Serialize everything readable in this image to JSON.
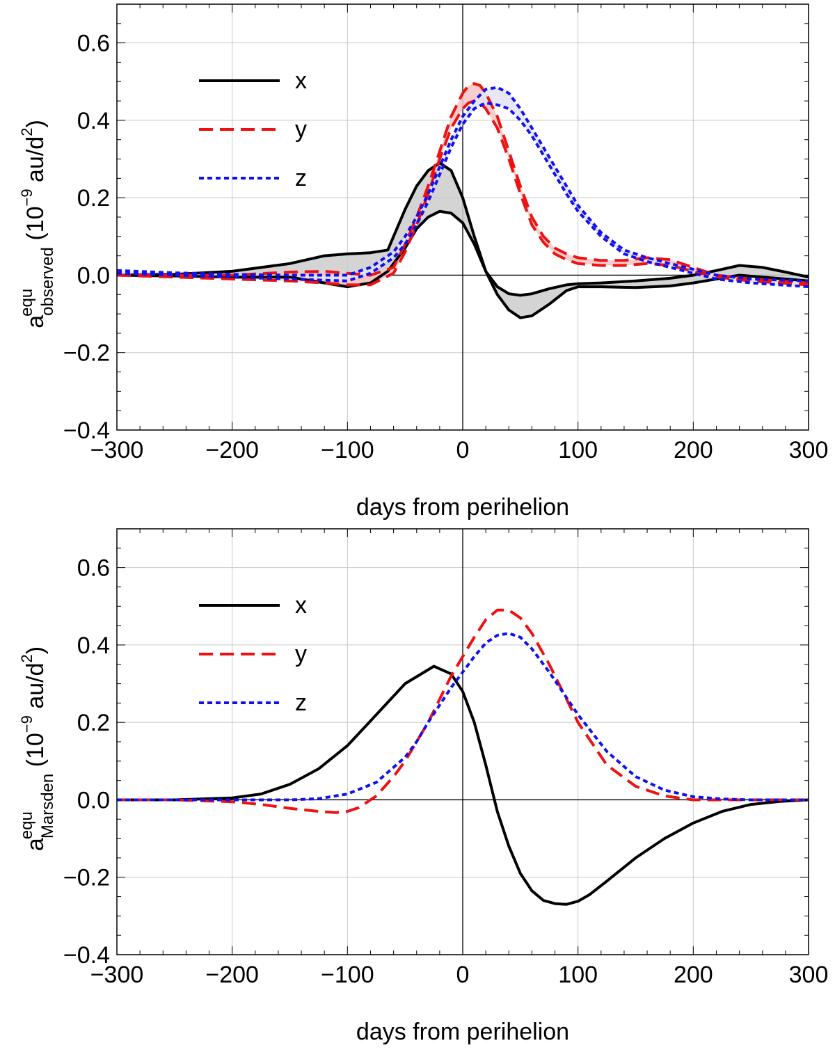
{
  "chart_data": [
    {
      "type": "line",
      "id": "top",
      "xlabel": "days from perihelion",
      "ylabel": {
        "base": "a",
        "sup": "equ",
        "sub": "observed",
        "unit_open": "(10",
        "unit_exp": "−9",
        "unit_mid": " au/d",
        "unit_sq": "2",
        "unit_close": ")"
      },
      "xlim": [
        -300,
        300
      ],
      "ylim": [
        -0.4,
        0.7
      ],
      "xticks": [
        -300,
        -200,
        -100,
        0,
        100,
        200,
        300
      ],
      "xtick_labels": [
        "−300",
        "−200",
        "−100",
        "0",
        "100",
        "200",
        "300"
      ],
      "yticks": [
        -0.4,
        -0.2,
        0.0,
        0.2,
        0.4,
        0.6
      ],
      "ytick_labels": [
        "−0.4",
        "−0.2",
        "0.0",
        "0.2",
        "0.4",
        "0.6"
      ],
      "legend": {
        "position": "top-left",
        "labels": [
          "x",
          "y",
          "z"
        ]
      },
      "bands": [
        {
          "name": "x",
          "color": "#000000",
          "fill": "#cccccc",
          "x": [
            -300,
            -250,
            -200,
            -150,
            -120,
            -100,
            -80,
            -65,
            -50,
            -40,
            -30,
            -20,
            -10,
            0,
            10,
            20,
            30,
            40,
            50,
            60,
            75,
            90,
            100,
            120,
            150,
            180,
            200,
            220,
            240,
            260,
            280,
            300
          ],
          "upper": [
            0.0,
            0.002,
            0.01,
            0.03,
            0.05,
            0.055,
            0.058,
            0.065,
            0.17,
            0.23,
            0.27,
            0.29,
            0.27,
            0.2,
            0.1,
            0.01,
            -0.03,
            -0.048,
            -0.052,
            -0.048,
            -0.035,
            -0.025,
            -0.022,
            -0.02,
            -0.015,
            -0.008,
            0.0,
            0.012,
            0.025,
            0.02,
            0.008,
            -0.005
          ],
          "lower": [
            0.0,
            -0.002,
            -0.005,
            -0.005,
            -0.02,
            -0.03,
            -0.02,
            0.01,
            0.07,
            0.12,
            0.15,
            0.165,
            0.16,
            0.135,
            0.08,
            0.01,
            -0.05,
            -0.09,
            -0.11,
            -0.105,
            -0.075,
            -0.04,
            -0.03,
            -0.03,
            -0.032,
            -0.028,
            -0.02,
            -0.01,
            0.0,
            -0.005,
            -0.01,
            -0.015
          ]
        },
        {
          "name": "y",
          "color": "#ee1111",
          "fill": "#f7c4c4",
          "x": [
            -300,
            -250,
            -200,
            -150,
            -120,
            -100,
            -80,
            -60,
            -50,
            -40,
            -30,
            -20,
            -10,
            0,
            5,
            10,
            15,
            20,
            30,
            40,
            50,
            60,
            70,
            80,
            90,
            100,
            120,
            140,
            160,
            180,
            200,
            220,
            250,
            300
          ],
          "upper": [
            0.0,
            0.0,
            0.0,
            0.008,
            0.01,
            0.005,
            0.0,
            0.02,
            0.08,
            0.15,
            0.23,
            0.32,
            0.41,
            0.47,
            0.49,
            0.495,
            0.49,
            0.47,
            0.41,
            0.32,
            0.23,
            0.15,
            0.1,
            0.07,
            0.055,
            0.045,
            0.038,
            0.038,
            0.045,
            0.04,
            0.02,
            0.0,
            -0.01,
            -0.02
          ],
          "lower": [
            0.0,
            -0.005,
            -0.01,
            -0.015,
            -0.02,
            -0.025,
            -0.025,
            0.005,
            0.06,
            0.13,
            0.21,
            0.3,
            0.38,
            0.43,
            0.445,
            0.45,
            0.445,
            0.43,
            0.38,
            0.3,
            0.21,
            0.13,
            0.085,
            0.055,
            0.04,
            0.03,
            0.025,
            0.025,
            0.03,
            0.025,
            0.01,
            -0.005,
            -0.015,
            -0.025
          ]
        },
        {
          "name": "z",
          "color": "#1111ee",
          "fill": "#e4e4f2",
          "x": [
            -300,
            -250,
            -200,
            -150,
            -100,
            -80,
            -60,
            -50,
            -40,
            -30,
            -20,
            -10,
            0,
            10,
            20,
            30,
            40,
            50,
            60,
            70,
            80,
            90,
            100,
            120,
            140,
            160,
            180,
            200,
            220,
            250,
            300
          ],
          "upper": [
            0.012,
            0.006,
            0.002,
            0.0,
            0.0,
            0.02,
            0.06,
            0.1,
            0.15,
            0.21,
            0.28,
            0.35,
            0.41,
            0.45,
            0.48,
            0.485,
            0.47,
            0.43,
            0.38,
            0.33,
            0.28,
            0.23,
            0.18,
            0.11,
            0.065,
            0.045,
            0.03,
            0.015,
            0.0,
            -0.01,
            -0.015
          ],
          "lower": [
            0.005,
            0.0,
            -0.005,
            -0.01,
            -0.015,
            0.005,
            0.045,
            0.08,
            0.13,
            0.19,
            0.26,
            0.33,
            0.39,
            0.43,
            0.445,
            0.44,
            0.43,
            0.4,
            0.36,
            0.31,
            0.26,
            0.21,
            0.165,
            0.1,
            0.055,
            0.035,
            0.02,
            0.005,
            -0.01,
            -0.02,
            -0.03
          ]
        }
      ]
    },
    {
      "type": "line",
      "id": "bottom",
      "xlabel": "days from perihelion",
      "ylabel": {
        "base": "a",
        "sup": "equ",
        "sub": "Marsden",
        "unit_open": "(10",
        "unit_exp": "−9",
        "unit_mid": " au/d",
        "unit_sq": "2",
        "unit_close": ")"
      },
      "xlim": [
        -300,
        300
      ],
      "ylim": [
        -0.4,
        0.7
      ],
      "xticks": [
        -300,
        -200,
        -100,
        0,
        100,
        200,
        300
      ],
      "xtick_labels": [
        "−300",
        "−200",
        "−100",
        "0",
        "100",
        "200",
        "300"
      ],
      "yticks": [
        -0.4,
        -0.2,
        0.0,
        0.2,
        0.4,
        0.6
      ],
      "ytick_labels": [
        "−0.4",
        "−0.2",
        "0.0",
        "0.2",
        "0.4",
        "0.6"
      ],
      "legend": {
        "position": "top-left",
        "labels": [
          "x",
          "y",
          "z"
        ]
      },
      "series": [
        {
          "name": "x",
          "color": "#000000",
          "dash": "solid",
          "x": [
            -300,
            -250,
            -200,
            -175,
            -150,
            -125,
            -100,
            -75,
            -50,
            -25,
            -10,
            0,
            10,
            20,
            30,
            40,
            50,
            60,
            70,
            80,
            90,
            100,
            110,
            125,
            150,
            175,
            200,
            225,
            250,
            275,
            300
          ],
          "y": [
            0.0,
            0.0,
            0.005,
            0.015,
            0.04,
            0.08,
            0.14,
            0.22,
            0.3,
            0.345,
            0.325,
            0.28,
            0.2,
            0.09,
            -0.03,
            -0.12,
            -0.19,
            -0.235,
            -0.26,
            -0.268,
            -0.27,
            -0.262,
            -0.245,
            -0.21,
            -0.15,
            -0.1,
            -0.06,
            -0.03,
            -0.012,
            -0.004,
            0.0
          ]
        },
        {
          "name": "y",
          "color": "#ee1111",
          "dash": "dashed",
          "x": [
            -300,
            -250,
            -200,
            -175,
            -150,
            -125,
            -110,
            -100,
            -90,
            -75,
            -60,
            -50,
            -40,
            -30,
            -20,
            -10,
            0,
            10,
            20,
            30,
            40,
            50,
            60,
            75,
            100,
            125,
            150,
            175,
            200,
            225,
            250,
            300
          ],
          "y": [
            0.0,
            0.0,
            -0.005,
            -0.012,
            -0.022,
            -0.03,
            -0.033,
            -0.03,
            -0.02,
            0.01,
            0.06,
            0.1,
            0.15,
            0.2,
            0.26,
            0.32,
            0.37,
            0.42,
            0.465,
            0.49,
            0.49,
            0.47,
            0.43,
            0.35,
            0.2,
            0.09,
            0.035,
            0.01,
            0.0,
            0.0,
            0.0,
            0.0
          ]
        },
        {
          "name": "z",
          "color": "#1111ee",
          "dash": "dotted",
          "x": [
            -300,
            -250,
            -200,
            -175,
            -150,
            -125,
            -100,
            -75,
            -50,
            -40,
            -30,
            -20,
            -10,
            0,
            10,
            20,
            30,
            40,
            50,
            60,
            75,
            100,
            125,
            150,
            175,
            200,
            225,
            250,
            275,
            300
          ],
          "y": [
            0.0,
            0.0,
            0.0,
            0.0,
            0.0,
            0.003,
            0.015,
            0.045,
            0.11,
            0.15,
            0.2,
            0.245,
            0.29,
            0.33,
            0.37,
            0.405,
            0.425,
            0.43,
            0.42,
            0.39,
            0.33,
            0.22,
            0.125,
            0.06,
            0.025,
            0.008,
            0.002,
            0.0,
            0.0,
            0.0
          ]
        }
      ]
    }
  ]
}
